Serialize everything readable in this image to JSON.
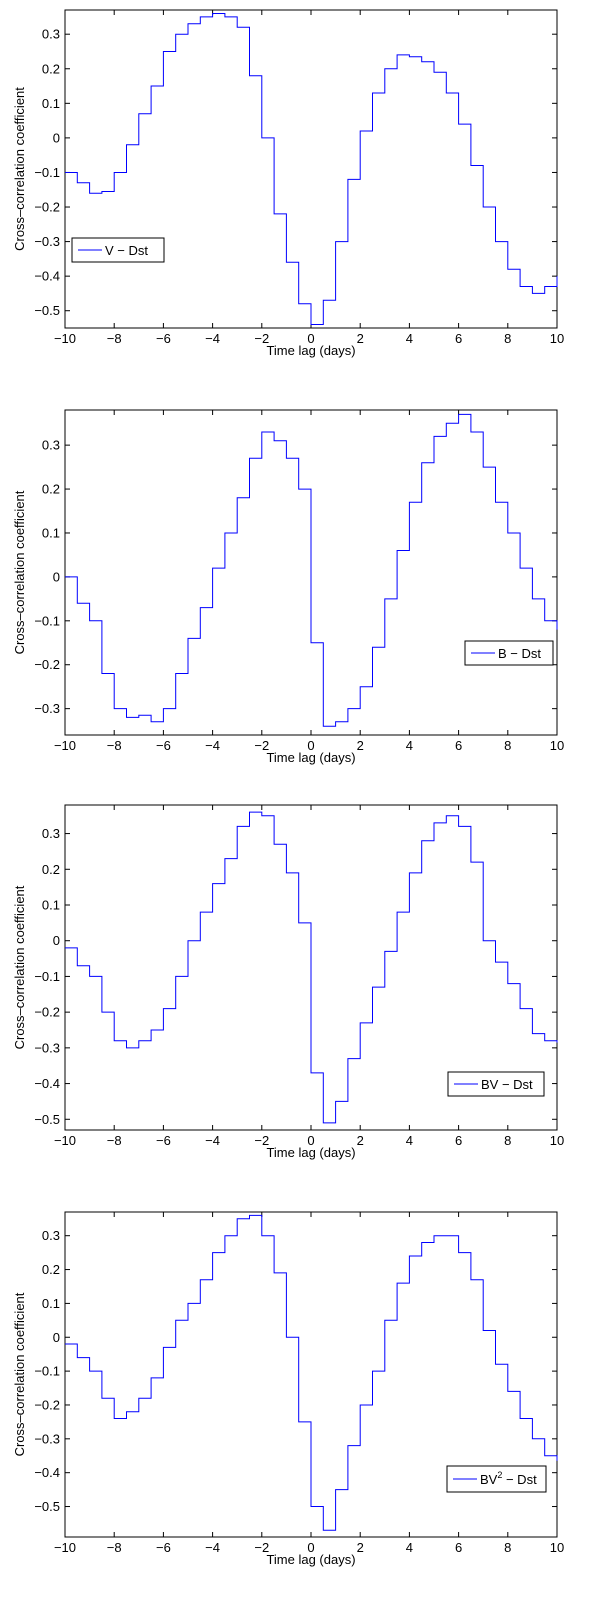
{
  "chart_data": [
    {
      "type": "line",
      "xlabel": "Time lag (days)",
      "ylabel": "Cross–correlation coefficient",
      "xlim": [
        -10,
        10
      ],
      "ylim": [
        -0.55,
        0.37
      ],
      "xticks": [
        "−10",
        "−8",
        "−6",
        "−4",
        "−2",
        "0",
        "2",
        "4",
        "6",
        "8",
        "10"
      ],
      "xtick_values": [
        -10,
        -8,
        -6,
        -4,
        -2,
        0,
        2,
        4,
        6,
        8,
        10
      ],
      "yticks": [
        "−0.5",
        "−0.4",
        "−0.3",
        "−0.2",
        "−0.1",
        "0",
        "0.1",
        "0.2",
        "0.3"
      ],
      "ytick_values": [
        -0.5,
        -0.4,
        -0.3,
        -0.2,
        -0.1,
        0,
        0.1,
        0.2,
        0.3
      ],
      "legend": {
        "label": "V − Dst",
        "sup": "",
        "suffix": "",
        "position": "middle-left"
      },
      "series": [
        {
          "color": "#0000ff",
          "style": "stairs",
          "points": [
            [
              -10,
              -0.1
            ],
            [
              -9.5,
              -0.13
            ],
            [
              -9,
              -0.16
            ],
            [
              -8.5,
              -0.155
            ],
            [
              -8,
              -0.1
            ],
            [
              -7.5,
              -0.02
            ],
            [
              -7,
              0.07
            ],
            [
              -6.5,
              0.15
            ],
            [
              -6,
              0.25
            ],
            [
              -5.5,
              0.3
            ],
            [
              -5,
              0.33
            ],
            [
              -4.5,
              0.35
            ],
            [
              -4,
              0.36
            ],
            [
              -3.5,
              0.35
            ],
            [
              -3,
              0.32
            ],
            [
              -2.5,
              0.18
            ],
            [
              -2,
              0.0
            ],
            [
              -1.5,
              -0.22
            ],
            [
              -1,
              -0.36
            ],
            [
              -0.5,
              -0.48
            ],
            [
              0,
              -0.54
            ],
            [
              0.5,
              -0.47
            ],
            [
              1,
              -0.3
            ],
            [
              1.5,
              -0.12
            ],
            [
              2,
              0.02
            ],
            [
              2.5,
              0.13
            ],
            [
              3,
              0.2
            ],
            [
              3.5,
              0.24
            ],
            [
              4,
              0.235
            ],
            [
              4.5,
              0.22
            ],
            [
              5,
              0.19
            ],
            [
              5.5,
              0.13
            ],
            [
              6,
              0.04
            ],
            [
              6.5,
              -0.08
            ],
            [
              7,
              -0.2
            ],
            [
              7.5,
              -0.3
            ],
            [
              8,
              -0.38
            ],
            [
              8.5,
              -0.43
            ],
            [
              9,
              -0.45
            ],
            [
              9.5,
              -0.43
            ],
            [
              10,
              -0.4
            ]
          ]
        }
      ]
    },
    {
      "type": "line",
      "xlabel": "Time lag (days)",
      "ylabel": "Cross–correlation coefficient",
      "xlim": [
        -10,
        10
      ],
      "ylim": [
        -0.36,
        0.38
      ],
      "xticks": [
        "−10",
        "−8",
        "−6",
        "−4",
        "−2",
        "0",
        "2",
        "4",
        "6",
        "8",
        "10"
      ],
      "xtick_values": [
        -10,
        -8,
        -6,
        -4,
        -2,
        0,
        2,
        4,
        6,
        8,
        10
      ],
      "yticks": [
        "−0.3",
        "−0.2",
        "−0.1",
        "0",
        "0.1",
        "0.2",
        "0.3"
      ],
      "ytick_values": [
        -0.3,
        -0.2,
        -0.1,
        0,
        0.1,
        0.2,
        0.3
      ],
      "legend": {
        "label": "B − Dst",
        "sup": "",
        "suffix": "",
        "position": "lower-right"
      },
      "series": [
        {
          "color": "#0000ff",
          "style": "stairs",
          "points": [
            [
              -10,
              0.0
            ],
            [
              -9.5,
              -0.06
            ],
            [
              -9,
              -0.1
            ],
            [
              -8.5,
              -0.22
            ],
            [
              -8,
              -0.3
            ],
            [
              -7.5,
              -0.32
            ],
            [
              -7,
              -0.315
            ],
            [
              -6.5,
              -0.33
            ],
            [
              -6,
              -0.3
            ],
            [
              -5.5,
              -0.22
            ],
            [
              -5,
              -0.14
            ],
            [
              -4.5,
              -0.07
            ],
            [
              -4,
              0.02
            ],
            [
              -3.5,
              0.1
            ],
            [
              -3,
              0.18
            ],
            [
              -2.5,
              0.27
            ],
            [
              -2,
              0.33
            ],
            [
              -1.5,
              0.31
            ],
            [
              -1,
              0.27
            ],
            [
              -0.5,
              0.2
            ],
            [
              0,
              -0.15
            ],
            [
              0.5,
              -0.34
            ],
            [
              1,
              -0.33
            ],
            [
              1.5,
              -0.3
            ],
            [
              2,
              -0.25
            ],
            [
              2.5,
              -0.16
            ],
            [
              3,
              -0.05
            ],
            [
              3.5,
              0.06
            ],
            [
              4,
              0.17
            ],
            [
              4.5,
              0.26
            ],
            [
              5,
              0.32
            ],
            [
              5.5,
              0.35
            ],
            [
              6,
              0.37
            ],
            [
              6.5,
              0.33
            ],
            [
              7,
              0.25
            ],
            [
              7.5,
              0.17
            ],
            [
              8,
              0.1
            ],
            [
              8.5,
              0.02
            ],
            [
              9,
              -0.05
            ],
            [
              9.5,
              -0.1
            ],
            [
              10,
              -0.12
            ]
          ]
        }
      ]
    },
    {
      "type": "line",
      "xlabel": "Time lag (days)",
      "ylabel": "Cross–correlation coefficient",
      "xlim": [
        -10,
        10
      ],
      "ylim": [
        -0.53,
        0.38
      ],
      "xticks": [
        "−10",
        "−8",
        "−6",
        "−4",
        "−2",
        "0",
        "2",
        "4",
        "6",
        "8",
        "10"
      ],
      "xtick_values": [
        -10,
        -8,
        -6,
        -4,
        -2,
        0,
        2,
        4,
        6,
        8,
        10
      ],
      "yticks": [
        "−0.5",
        "−0.4",
        "−0.3",
        "−0.2",
        "−0.1",
        "0",
        "0.1",
        "0.2",
        "0.3"
      ],
      "ytick_values": [
        -0.5,
        -0.4,
        -0.3,
        -0.2,
        -0.1,
        0,
        0.1,
        0.2,
        0.3
      ],
      "legend": {
        "label": "BV − Dst",
        "sup": "",
        "suffix": "",
        "position": "lower-right"
      },
      "series": [
        {
          "color": "#0000ff",
          "style": "stairs",
          "points": [
            [
              -10,
              -0.02
            ],
            [
              -9.5,
              -0.07
            ],
            [
              -9,
              -0.1
            ],
            [
              -8.5,
              -0.2
            ],
            [
              -8,
              -0.28
            ],
            [
              -7.5,
              -0.3
            ],
            [
              -7,
              -0.28
            ],
            [
              -6.5,
              -0.25
            ],
            [
              -6,
              -0.19
            ],
            [
              -5.5,
              -0.1
            ],
            [
              -5,
              0.0
            ],
            [
              -4.5,
              0.08
            ],
            [
              -4,
              0.16
            ],
            [
              -3.5,
              0.23
            ],
            [
              -3,
              0.32
            ],
            [
              -2.5,
              0.36
            ],
            [
              -2,
              0.35
            ],
            [
              -1.5,
              0.27
            ],
            [
              -1,
              0.19
            ],
            [
              -0.5,
              0.05
            ],
            [
              0,
              -0.37
            ],
            [
              0.5,
              -0.51
            ],
            [
              1,
              -0.45
            ],
            [
              1.5,
              -0.33
            ],
            [
              2,
              -0.23
            ],
            [
              2.5,
              -0.13
            ],
            [
              3,
              -0.03
            ],
            [
              3.5,
              0.08
            ],
            [
              4,
              0.19
            ],
            [
              4.5,
              0.28
            ],
            [
              5,
              0.33
            ],
            [
              5.5,
              0.35
            ],
            [
              6,
              0.32
            ],
            [
              6.5,
              0.22
            ],
            [
              7,
              0.0
            ],
            [
              7.5,
              -0.06
            ],
            [
              8,
              -0.12
            ],
            [
              8.5,
              -0.19
            ],
            [
              9,
              -0.26
            ],
            [
              9.5,
              -0.28
            ],
            [
              10,
              -0.285
            ]
          ]
        }
      ]
    },
    {
      "type": "line",
      "xlabel": "Time lag (days)",
      "ylabel": "Cross–correlation coefficient",
      "xlim": [
        -10,
        10
      ],
      "ylim": [
        -0.59,
        0.37
      ],
      "xticks": [
        "−10",
        "−8",
        "−6",
        "−4",
        "−2",
        "0",
        "2",
        "4",
        "6",
        "8",
        "10"
      ],
      "xtick_values": [
        -10,
        -8,
        -6,
        -4,
        -2,
        0,
        2,
        4,
        6,
        8,
        10
      ],
      "yticks": [
        "−0.5",
        "−0.4",
        "−0.3",
        "−0.2",
        "−0.1",
        "0",
        "0.1",
        "0.2",
        "0.3"
      ],
      "ytick_values": [
        -0.5,
        -0.4,
        -0.3,
        -0.2,
        -0.1,
        0,
        0.1,
        0.2,
        0.3
      ],
      "legend": {
        "label": "BV",
        "sup": "2",
        "suffix": " − Dst",
        "position": "lower-right"
      },
      "series": [
        {
          "color": "#0000ff",
          "style": "stairs",
          "points": [
            [
              -10,
              -0.02
            ],
            [
              -9.5,
              -0.06
            ],
            [
              -9,
              -0.1
            ],
            [
              -8.5,
              -0.18
            ],
            [
              -8,
              -0.24
            ],
            [
              -7.5,
              -0.22
            ],
            [
              -7,
              -0.18
            ],
            [
              -6.5,
              -0.12
            ],
            [
              -6,
              -0.03
            ],
            [
              -5.5,
              0.05
            ],
            [
              -5,
              0.1
            ],
            [
              -4.5,
              0.17
            ],
            [
              -4,
              0.25
            ],
            [
              -3.5,
              0.3
            ],
            [
              -3,
              0.35
            ],
            [
              -2.5,
              0.36
            ],
            [
              -2,
              0.3
            ],
            [
              -1.5,
              0.19
            ],
            [
              -1,
              0.0
            ],
            [
              -0.5,
              -0.25
            ],
            [
              0,
              -0.5
            ],
            [
              0.5,
              -0.57
            ],
            [
              1,
              -0.45
            ],
            [
              1.5,
              -0.32
            ],
            [
              2,
              -0.2
            ],
            [
              2.5,
              -0.1
            ],
            [
              3,
              0.05
            ],
            [
              3.5,
              0.16
            ],
            [
              4,
              0.24
            ],
            [
              4.5,
              0.28
            ],
            [
              5,
              0.3
            ],
            [
              5.5,
              0.3
            ],
            [
              6,
              0.25
            ],
            [
              6.5,
              0.17
            ],
            [
              7,
              0.02
            ],
            [
              7.5,
              -0.08
            ],
            [
              8,
              -0.16
            ],
            [
              8.5,
              -0.24
            ],
            [
              9,
              -0.3
            ],
            [
              9.5,
              -0.35
            ],
            [
              10,
              -0.365
            ]
          ]
        }
      ]
    }
  ]
}
